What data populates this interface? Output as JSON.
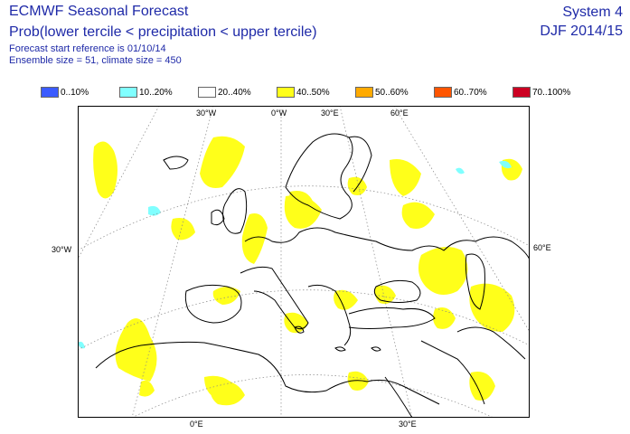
{
  "header": {
    "title": "ECMWF Seasonal Forecast",
    "subtitle": "Prob(lower tercile < precipitation < upper tercile)",
    "forecast_start": "Forecast start reference is 01/10/14",
    "ensemble": "Ensemble size = 51, climate size = 450",
    "system": "System 4",
    "season": "DJF 2014/15"
  },
  "legend": [
    {
      "label": "0..10%",
      "color": "#3b5bff"
    },
    {
      "label": "10..20%",
      "color": "#80ffff"
    },
    {
      "label": "20..40%",
      "color": "#ffffff"
    },
    {
      "label": "40..50%",
      "color": "#ffff1a"
    },
    {
      "label": "50..60%",
      "color": "#ffaa00"
    },
    {
      "label": "60..70%",
      "color": "#ff5500"
    },
    {
      "label": "70..100%",
      "color": "#cc0022"
    }
  ],
  "map": {
    "region": "Europe",
    "lon_labels_top": [
      "30°W",
      "0°W",
      "30°E",
      "60°E"
    ],
    "lon_labels_bottom": [
      "0°E",
      "30°E"
    ],
    "lat_labels_left": [
      "30°W"
    ],
    "lat_labels_right": [
      "60°E"
    ],
    "colors": {
      "land_outline": "#000000",
      "grid": "#888888",
      "frame": "#000000"
    }
  }
}
